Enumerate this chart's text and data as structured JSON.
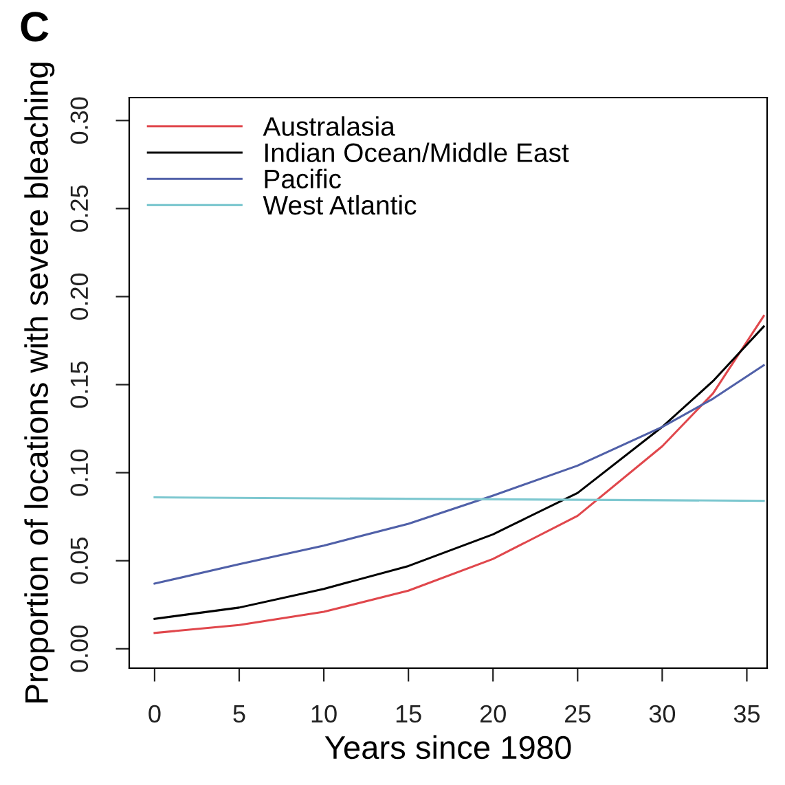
{
  "chart_data": {
    "type": "line",
    "title": "C",
    "xlabel": "Years since 1980",
    "ylabel": "Proportion of locations with severe bleaching",
    "x": [
      0,
      5,
      10,
      15,
      20,
      25,
      30,
      33,
      36
    ],
    "series": [
      {
        "name": "Australasia",
        "color": "#e0474c",
        "values": [
          0.009,
          0.0135,
          0.021,
          0.033,
          0.051,
          0.0755,
          0.115,
          0.145,
          0.189
        ]
      },
      {
        "name": "Indian Ocean/Middle East",
        "color": "#000000",
        "values": [
          0.017,
          0.0234,
          0.034,
          0.047,
          0.065,
          0.0885,
          0.126,
          0.152,
          0.183
        ]
      },
      {
        "name": "Pacific",
        "color": "#5060a8",
        "values": [
          0.037,
          0.048,
          0.0586,
          0.071,
          0.087,
          0.104,
          0.126,
          0.142,
          0.161
        ]
      },
      {
        "name": "West Atlantic",
        "color": "#7ec8d0",
        "x": [
          0,
          36
        ],
        "values": [
          0.086,
          0.084
        ]
      }
    ],
    "xlim": [
      -1.5,
      36.2
    ],
    "ylim": [
      -0.011,
      0.313
    ],
    "xticks": [
      0,
      5,
      10,
      15,
      20,
      25,
      30,
      35
    ],
    "yticks": [
      {
        "value": 0,
        "label": "0.00"
      },
      0.05,
      {
        "value": 0.1,
        "label": "0.10"
      },
      0.15,
      {
        "value": 0.2,
        "label": "0.20"
      },
      0.25,
      {
        "value": 0.3,
        "label": "0.30"
      }
    ],
    "legend": "top left",
    "grid": false
  }
}
